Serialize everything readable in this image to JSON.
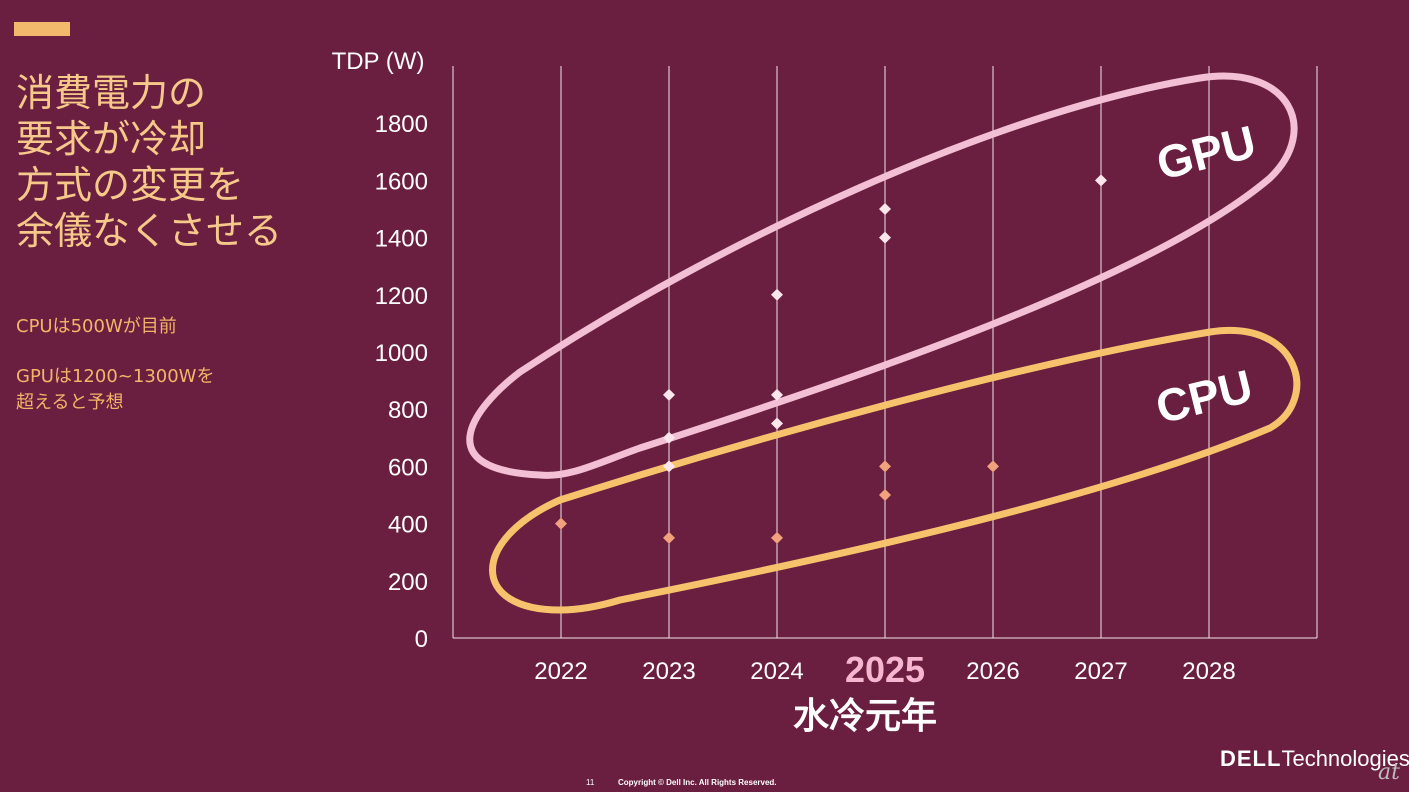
{
  "slide": {
    "headline_lines": [
      "消費電力の",
      "要求が冷却",
      "方式の変更を",
      "余儀なくさせる"
    ],
    "notes": [
      "CPUは500Wが目前",
      "GPUは1200~1300Wを",
      "超えると予想"
    ],
    "page_number": "11",
    "copyright": "Copyright © Dell Inc. All Rights Reserved.",
    "brand_dell": "DELL",
    "brand_tech": "Technologies",
    "watermark": "at"
  },
  "chart_data": {
    "type": "scatter",
    "ylabel": "TDP (W)",
    "ylim": [
      0,
      2000
    ],
    "y_ticks": [
      0,
      200,
      400,
      600,
      800,
      1000,
      1200,
      1400,
      1600,
      1800
    ],
    "categories": [
      "2022",
      "2023",
      "2024",
      "2025",
      "2026",
      "2027",
      "2028"
    ],
    "highlight_category": "2025",
    "highlight_caption": "水冷元年",
    "grid": true,
    "series": [
      {
        "name": "GPU",
        "color": "#fbe6ec",
        "outline_color": "#f2bfd4",
        "points": [
          {
            "x": "2023",
            "y": 600
          },
          {
            "x": "2023",
            "y": 700
          },
          {
            "x": "2023",
            "y": 850
          },
          {
            "x": "2024",
            "y": 750
          },
          {
            "x": "2024",
            "y": 850
          },
          {
            "x": "2024",
            "y": 1200
          },
          {
            "x": "2025",
            "y": 1400
          },
          {
            "x": "2025",
            "y": 1500
          },
          {
            "x": "2027",
            "y": 1600
          }
        ]
      },
      {
        "name": "CPU",
        "color": "#f0a27c",
        "outline_color": "#f6c36c",
        "points": [
          {
            "x": "2022",
            "y": 400
          },
          {
            "x": "2023",
            "y": 350
          },
          {
            "x": "2024",
            "y": 350
          },
          {
            "x": "2025",
            "y": 500
          },
          {
            "x": "2025",
            "y": 600
          },
          {
            "x": "2026",
            "y": 600
          }
        ]
      }
    ]
  }
}
